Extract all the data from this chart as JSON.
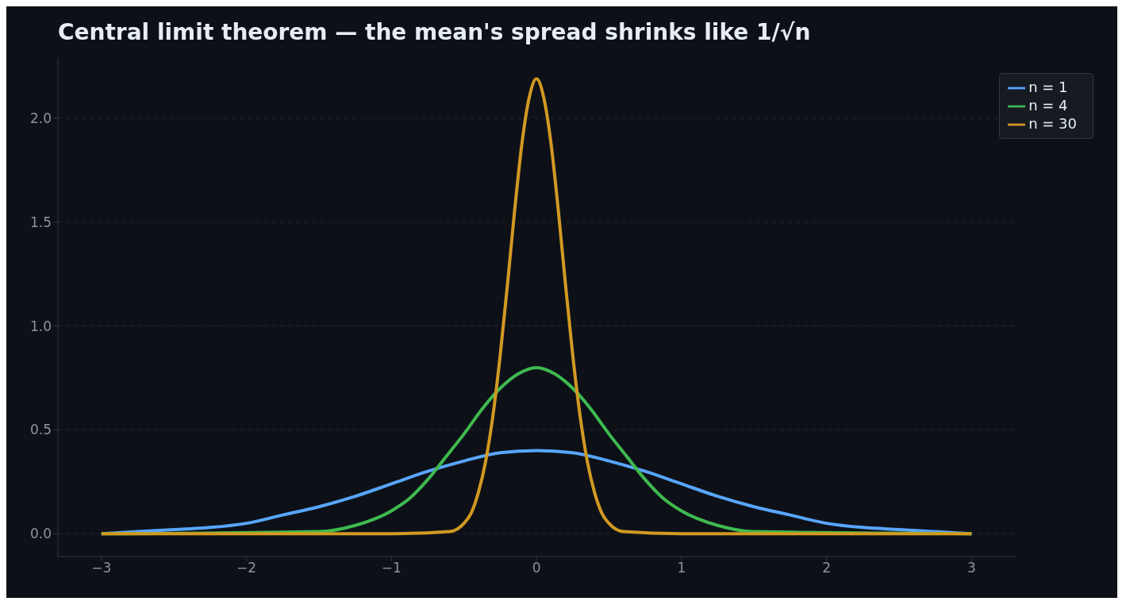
{
  "chart_data": {
    "type": "line",
    "title": "Central limit theorem — the mean's spread shrinks like 1/√n",
    "xlim": [
      -3.3,
      3.3
    ],
    "ylim": [
      -0.11,
      2.29
    ],
    "xticks": [
      {
        "value": -3,
        "label": "−3"
      },
      {
        "value": -2,
        "label": "−2"
      },
      {
        "value": -1,
        "label": "−1"
      },
      0,
      1,
      2,
      3
    ],
    "yticks": [
      {
        "value": 0,
        "label": "0.0"
      },
      {
        "value": 0.5,
        "label": "0.5"
      },
      {
        "value": 1,
        "label": "1.0"
      },
      {
        "value": 1.5,
        "label": "1.5"
      },
      {
        "value": 2,
        "label": "2.0"
      }
    ],
    "grid": "y",
    "legend": "top right",
    "line_style": "solid",
    "marker": "none",
    "series": [
      {
        "name": "n = 1",
        "color": "#58a6ff",
        "x": [
          -3,
          -2.75,
          -2.5,
          -2.25,
          -2,
          -1.75,
          -1.5,
          -1.25,
          -1,
          -0.75,
          -0.5,
          -0.25,
          0,
          0.25,
          0.5,
          0.75,
          1,
          1.25,
          1.5,
          1.75,
          2,
          2.25,
          2.5,
          2.75,
          3
        ],
        "values": [
          0,
          0.01,
          0.02,
          0.03,
          0.05,
          0.09,
          0.13,
          0.18,
          0.24,
          0.3,
          0.35,
          0.39,
          0.4,
          0.39,
          0.35,
          0.3,
          0.24,
          0.18,
          0.13,
          0.09,
          0.05,
          0.03,
          0.02,
          0.01,
          0
        ]
      },
      {
        "name": "n = 4",
        "color": "#3fb950",
        "x": [
          -3,
          -1.5,
          -1.25,
          -1,
          -0.875,
          -0.75,
          -0.625,
          -0.5,
          -0.375,
          -0.25,
          -0.125,
          0,
          0.125,
          0.25,
          0.375,
          0.5,
          0.625,
          0.75,
          0.875,
          1,
          1.25,
          1.5,
          3
        ],
        "values": [
          0,
          0.01,
          0.04,
          0.11,
          0.17,
          0.26,
          0.37,
          0.48,
          0.6,
          0.7,
          0.77,
          0.8,
          0.77,
          0.7,
          0.6,
          0.48,
          0.37,
          0.26,
          0.17,
          0.11,
          0.04,
          0.01,
          0
        ]
      },
      {
        "name": "n = 30",
        "color": "#d29922",
        "x": [
          -3,
          -1,
          -0.6,
          -0.5,
          -0.45,
          -0.4,
          -0.35,
          -0.3,
          -0.25,
          -0.2,
          -0.15,
          -0.1,
          -0.05,
          0,
          0.05,
          0.1,
          0.15,
          0.2,
          0.25,
          0.3,
          0.35,
          0.4,
          0.45,
          0.5,
          0.6,
          1,
          3
        ],
        "values": [
          0,
          0,
          0.01,
          0.05,
          0.1,
          0.2,
          0.35,
          0.57,
          0.86,
          1.2,
          1.56,
          1.88,
          2.1,
          2.19,
          2.1,
          1.88,
          1.56,
          1.2,
          0.86,
          0.57,
          0.35,
          0.2,
          0.1,
          0.05,
          0.01,
          0,
          0
        ]
      }
    ]
  }
}
